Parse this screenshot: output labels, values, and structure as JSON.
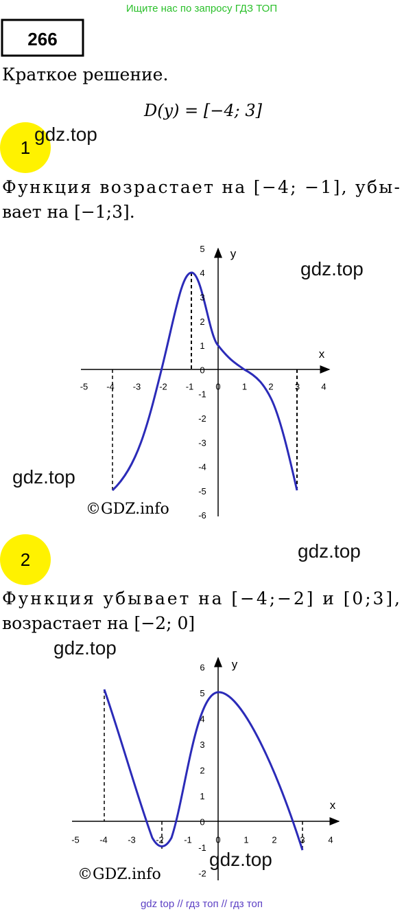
{
  "header": {
    "banner": "Ищите нас по запросу ГДЗ ТОП",
    "number": "266",
    "subtitle": "Краткое решение.",
    "domain": "D(y) = [−4; 3]"
  },
  "sections": [
    {
      "badge": "1",
      "lines": [
        "Функция возрастает на [−4; −1], убы-",
        "вает на [−1;3]."
      ],
      "graph": {
        "x_label": "x",
        "y_label": "y",
        "x_ticks": [
          "-5",
          "-4",
          "-3",
          "-2",
          "-1",
          "0",
          "1",
          "2",
          "3",
          "4"
        ],
        "y_ticks": [
          "5",
          "4",
          "3",
          "2",
          "1",
          "0",
          "-1",
          "-2",
          "-3",
          "-4",
          "-5",
          "-6"
        ]
      }
    },
    {
      "badge": "2",
      "lines": [
        "Функция убывает на [−4;−2] и [0;3],",
        "возрастает на [−2; 0]"
      ],
      "graph": {
        "x_label": "x",
        "y_label": "y",
        "x_ticks": [
          "-5",
          "-4",
          "-3",
          "-2",
          "-1",
          "0",
          "1",
          "2",
          "3",
          "4"
        ],
        "y_ticks": [
          "6",
          "5",
          "4",
          "3",
          "2",
          "1",
          "0",
          "-1",
          "-2"
        ]
      }
    }
  ],
  "watermarks": [
    "gdz.top",
    "gdz.top",
    "gdz.top",
    "gdz.top",
    "gdz.top",
    "gdz.top"
  ],
  "copyrights": [
    "©GDZ.info",
    "©GDZ.info"
  ],
  "footer": "gdz top // гдз топ // гдз топ"
}
